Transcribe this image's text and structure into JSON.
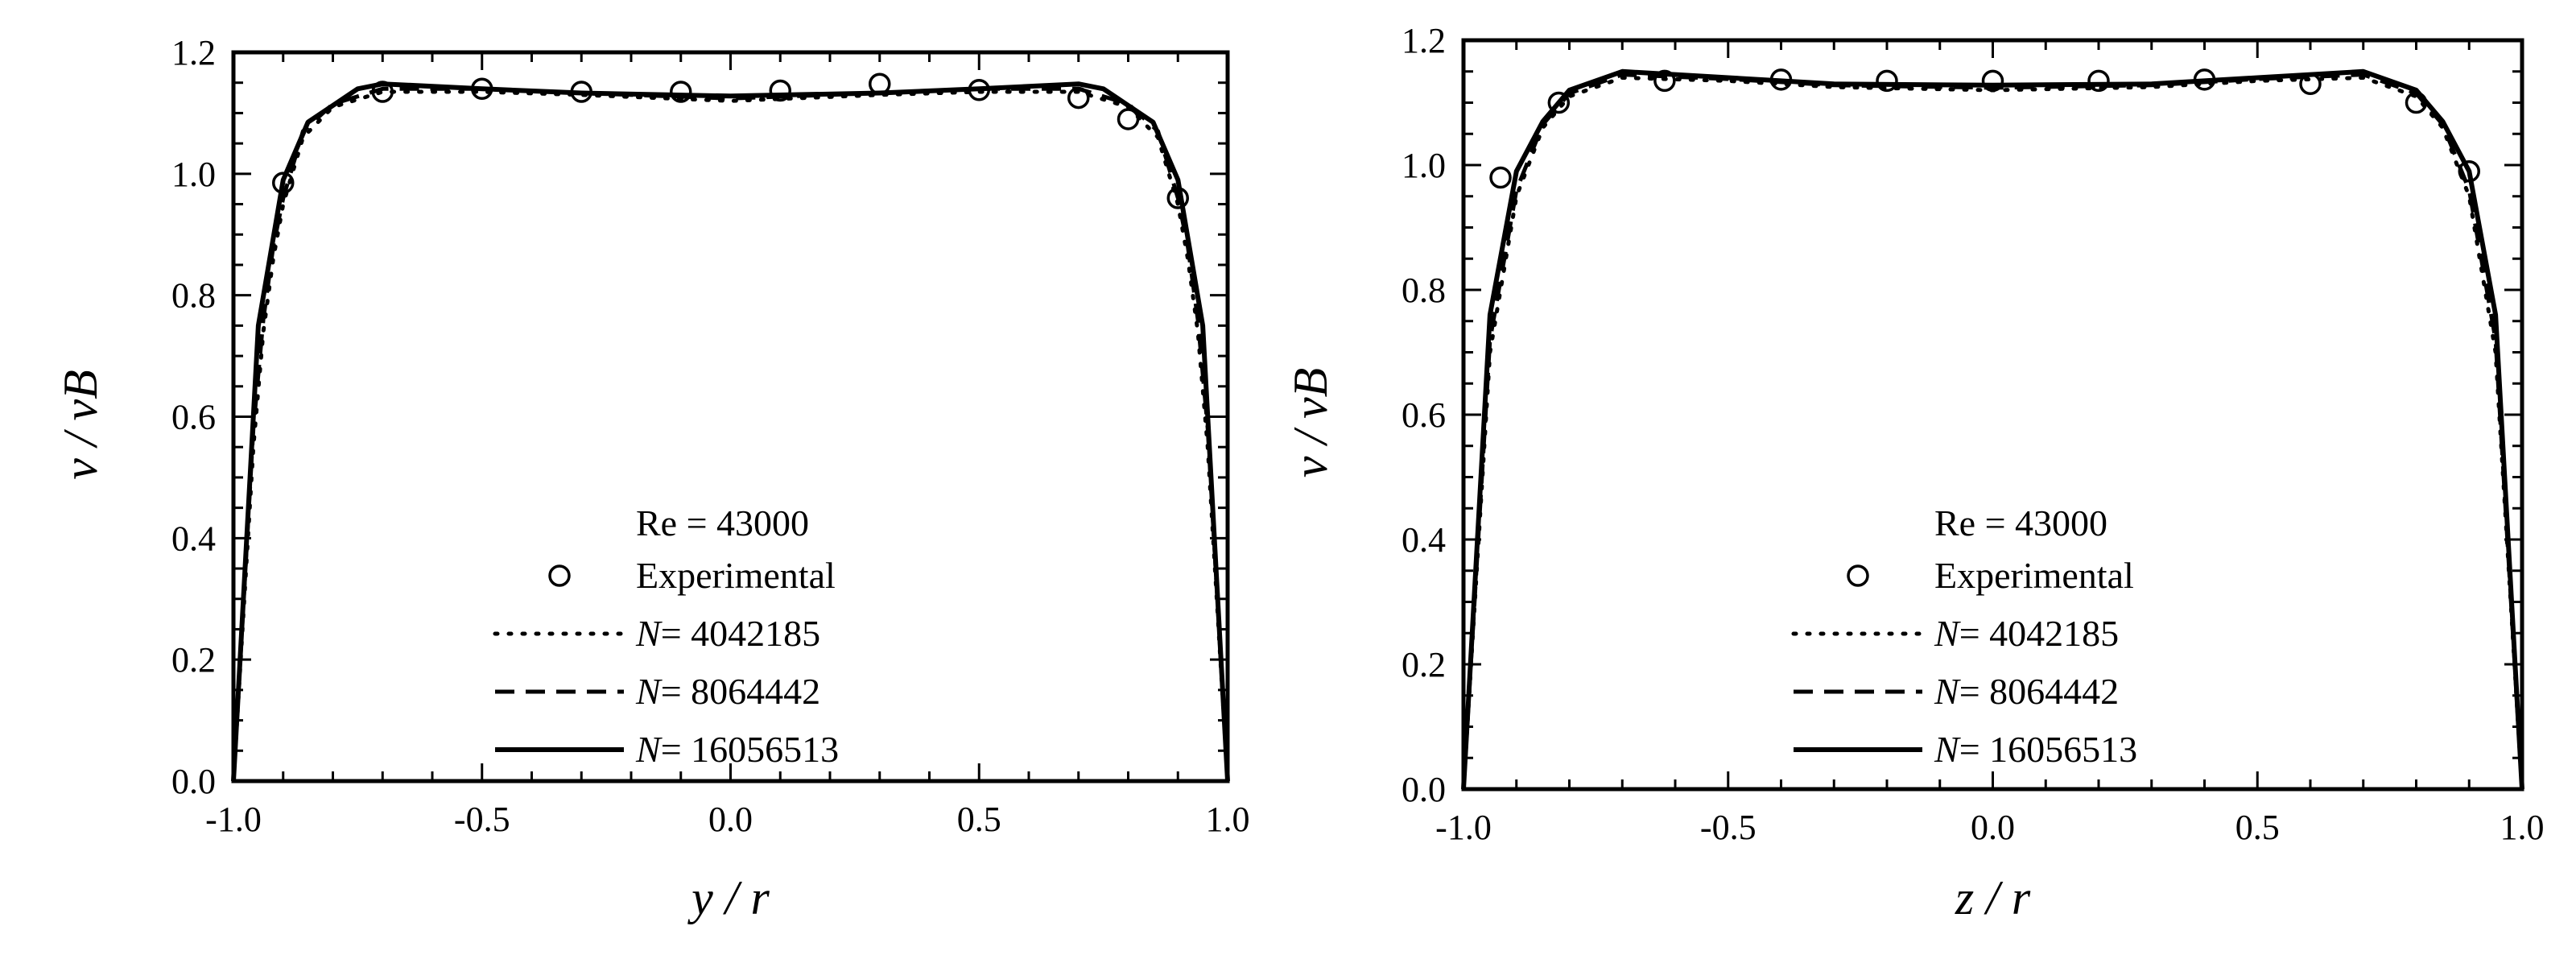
{
  "chart_data": [
    {
      "type": "line",
      "xlabel": "y / r",
      "ylabel": "v / vB",
      "xlim": [
        -1.0,
        1.0
      ],
      "ylim": [
        0.0,
        1.2
      ],
      "x_ticks": [
        "-1.0",
        "-0.5",
        "0.0",
        "0.5",
        "1.0"
      ],
      "y_ticks": [
        "0.0",
        "0.2",
        "0.4",
        "0.6",
        "0.8",
        "1.0",
        "1.2"
      ],
      "grid": false,
      "legend_position": "bottom-center",
      "annotation": "Re = 43000",
      "series": [
        {
          "name": "Experimental",
          "style": "open-circle",
          "x": [
            -0.9,
            -0.7,
            -0.5,
            -0.3,
            -0.1,
            0.1,
            0.3,
            0.5,
            0.7,
            0.8,
            0.9
          ],
          "y": [
            0.985,
            1.135,
            1.14,
            1.135,
            1.135,
            1.137,
            1.148,
            1.138,
            1.125,
            1.09,
            0.96
          ]
        },
        {
          "name_var": "N",
          "name_val": "= 4042185",
          "style": "dotted",
          "x": [
            -1.0,
            -0.96,
            -0.94,
            -0.92,
            -0.9,
            -0.86,
            -0.8,
            -0.7,
            -0.5,
            -0.3,
            0.0,
            0.3,
            0.5,
            0.7,
            0.8,
            0.86,
            0.9,
            0.92,
            0.94,
            0.96,
            1.0
          ],
          "y": [
            0.0,
            0.55,
            0.74,
            0.86,
            0.95,
            1.06,
            1.11,
            1.135,
            1.135,
            1.13,
            1.12,
            1.13,
            1.135,
            1.135,
            1.11,
            1.06,
            0.95,
            0.86,
            0.74,
            0.55,
            0.0
          ]
        },
        {
          "name_var": "N",
          "name_val": "= 8064442",
          "style": "dashed",
          "x": [
            -1.0,
            -0.96,
            -0.94,
            -0.92,
            -0.9,
            -0.86,
            -0.8,
            -0.7,
            -0.5,
            -0.3,
            0.0,
            0.3,
            0.5,
            0.7,
            0.8,
            0.86,
            0.9,
            0.92,
            0.94,
            0.96,
            1.0
          ],
          "y": [
            0.0,
            0.58,
            0.76,
            0.88,
            0.96,
            1.07,
            1.115,
            1.14,
            1.14,
            1.133,
            1.124,
            1.133,
            1.14,
            1.14,
            1.115,
            1.07,
            0.96,
            0.88,
            0.76,
            0.58,
            0.0
          ]
        },
        {
          "name_var": "N",
          "name_val": "= 16056513",
          "style": "solid",
          "x": [
            -1.0,
            -0.95,
            -0.9,
            -0.85,
            -0.75,
            -0.7,
            -0.5,
            -0.3,
            0.0,
            0.3,
            0.5,
            0.7,
            0.75,
            0.85,
            0.9,
            0.95,
            1.0
          ],
          "y": [
            0.0,
            0.75,
            0.99,
            1.085,
            1.14,
            1.148,
            1.14,
            1.133,
            1.128,
            1.133,
            1.14,
            1.148,
            1.14,
            1.085,
            0.99,
            0.75,
            0.0
          ]
        }
      ]
    },
    {
      "type": "line",
      "xlabel": "z / r",
      "ylabel": "v / vB",
      "xlim": [
        -1.0,
        1.0
      ],
      "ylim": [
        0.0,
        1.2
      ],
      "x_ticks": [
        "-1.0",
        "-0.5",
        "0.0",
        "0.5",
        "1.0"
      ],
      "y_ticks": [
        "0.0",
        "0.2",
        "0.4",
        "0.6",
        "0.8",
        "1.0",
        "1.2"
      ],
      "grid": false,
      "legend_position": "bottom-center",
      "annotation": "Re = 43000",
      "series": [
        {
          "name": "Experimental",
          "style": "open-circle",
          "x": [
            -0.93,
            -0.82,
            -0.62,
            -0.4,
            -0.2,
            0.0,
            0.2,
            0.4,
            0.6,
            0.8,
            0.9
          ],
          "y": [
            0.98,
            1.1,
            1.135,
            1.137,
            1.135,
            1.135,
            1.135,
            1.137,
            1.13,
            1.1,
            0.99
          ]
        },
        {
          "name_var": "N",
          "name_val": "= 4042185",
          "style": "dotted",
          "x": [
            -1.0,
            -0.95,
            -0.9,
            -0.85,
            -0.8,
            -0.7,
            -0.5,
            -0.3,
            0.0,
            0.3,
            0.5,
            0.7,
            0.8,
            0.85,
            0.9,
            0.95,
            1.0
          ],
          "y": [
            0.0,
            0.7,
            0.95,
            1.06,
            1.11,
            1.14,
            1.135,
            1.125,
            1.12,
            1.125,
            1.135,
            1.14,
            1.11,
            1.06,
            0.95,
            0.7,
            0.0
          ]
        },
        {
          "name_var": "N",
          "name_val": "= 8064442",
          "style": "dashed",
          "x": [
            -1.0,
            -0.95,
            -0.9,
            -0.85,
            -0.8,
            -0.7,
            -0.5,
            -0.3,
            0.0,
            0.3,
            0.5,
            0.7,
            0.8,
            0.85,
            0.9,
            0.95,
            1.0
          ],
          "y": [
            0.0,
            0.72,
            0.96,
            1.065,
            1.115,
            1.145,
            1.138,
            1.128,
            1.124,
            1.128,
            1.138,
            1.145,
            1.115,
            1.065,
            0.96,
            0.72,
            0.0
          ]
        },
        {
          "name_var": "N",
          "name_val": "= 16056513",
          "style": "solid",
          "x": [
            -1.0,
            -0.95,
            -0.9,
            -0.85,
            -0.8,
            -0.7,
            -0.5,
            -0.3,
            0.0,
            0.3,
            0.5,
            0.7,
            0.8,
            0.85,
            0.9,
            0.95,
            1.0
          ],
          "y": [
            0.0,
            0.76,
            0.99,
            1.07,
            1.12,
            1.15,
            1.14,
            1.13,
            1.128,
            1.13,
            1.14,
            1.15,
            1.12,
            1.07,
            0.99,
            0.76,
            0.0
          ]
        }
      ]
    }
  ]
}
